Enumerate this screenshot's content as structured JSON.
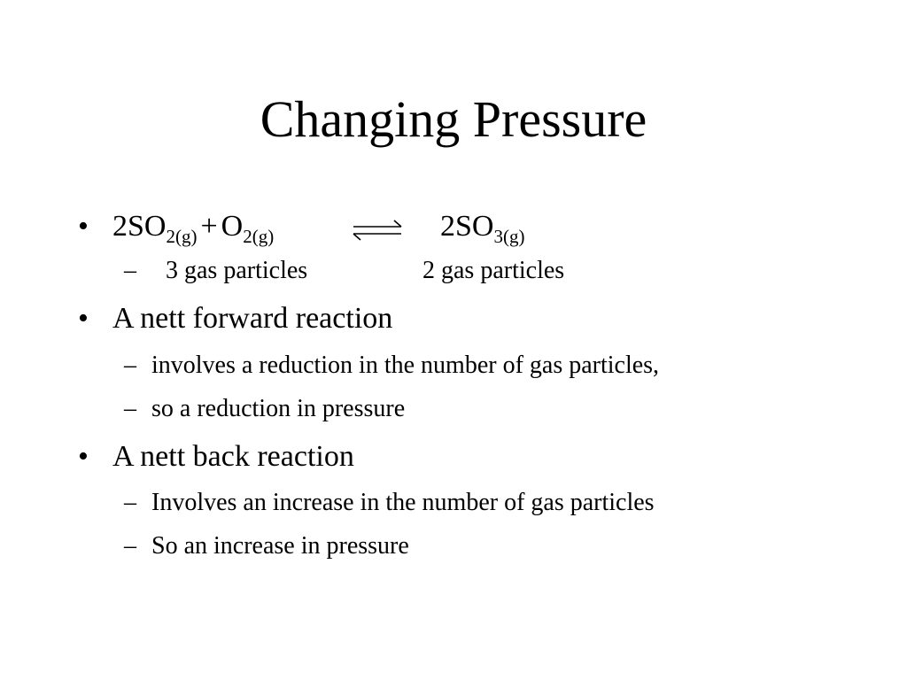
{
  "slide": {
    "title": "Changing Pressure",
    "bullets": [
      {
        "bullet_symbol": "•",
        "equation": {
          "reactant1_main": "2SO",
          "reactant1_sub": "2(g)",
          "plus": "+",
          "reactant2_main": "O",
          "reactant2_sub": "2(g)",
          "arrow_icon": "equilibrium-arrow-icon",
          "product_main": "2SO",
          "product_sub": "3(g)"
        },
        "subitems": [
          {
            "dash": "–",
            "left_text": "3  gas particles",
            "right_text": "2 gas particles"
          }
        ]
      },
      {
        "bullet_symbol": "•",
        "text": "A nett forward reaction",
        "subitems": [
          {
            "dash": "–",
            "text": "involves a reduction in the number of gas particles,"
          },
          {
            "dash": "–",
            "text": "so a reduction in pressure"
          }
        ]
      },
      {
        "bullet_symbol": "•",
        "text": "A nett back reaction",
        "subitems": [
          {
            "dash": "–",
            "text": "Involves an increase in the number of gas particles"
          },
          {
            "dash": "–",
            "text": "So an increase in pressure"
          }
        ]
      }
    ]
  }
}
